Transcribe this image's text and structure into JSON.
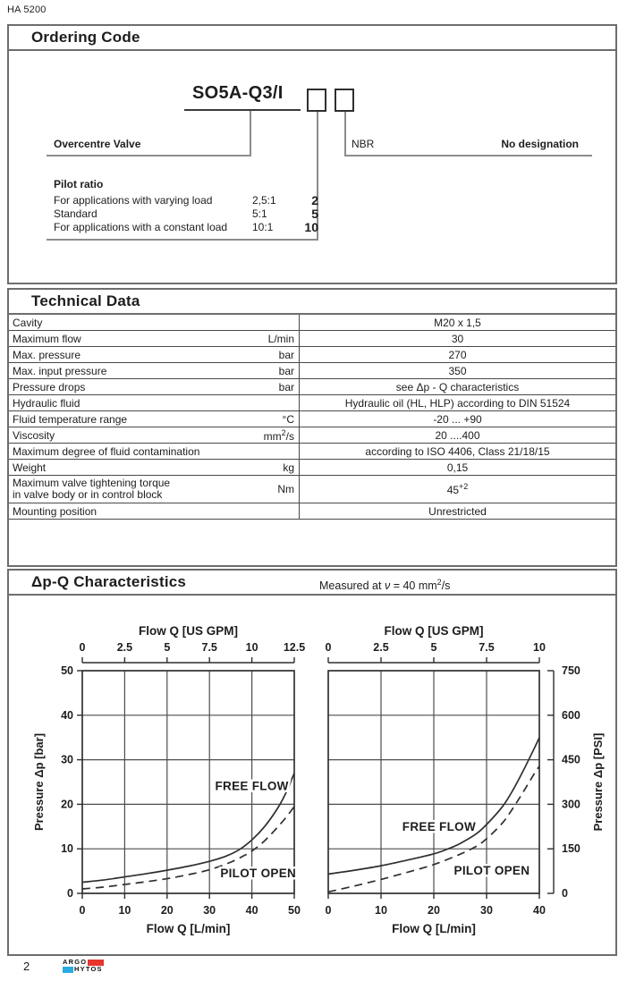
{
  "page": {
    "doc_code": "HA 5200",
    "page_number": "2",
    "logo": {
      "word1": "ARGO",
      "word2": "HYTOS",
      "red": "#e8352e",
      "cyan": "#29abe2"
    }
  },
  "ordering": {
    "title": "Ordering Code",
    "model_code": "SO5A-Q3/I",
    "valve_label": "Overcentre Valve",
    "seal_label": "NBR",
    "seal_value": "No designation",
    "pilot": {
      "heading": "Pilot ratio",
      "rows": [
        {
          "desc": "For applications with varying load",
          "ratio": "2,5:1",
          "code": "2"
        },
        {
          "desc": "Standard",
          "ratio": "5:1",
          "code": "5"
        },
        {
          "desc": "For applications with a constant load",
          "ratio": "10:1",
          "code": "10"
        }
      ]
    }
  },
  "technical": {
    "title": "Technical Data",
    "rows": [
      {
        "label": "Cavity",
        "unit": "",
        "value": "M20 x 1,5"
      },
      {
        "label": "Maximum flow",
        "unit": "L/min",
        "value": "30"
      },
      {
        "label": "Max. pressure",
        "unit": "bar",
        "value": "270"
      },
      {
        "label": "Max. input pressure",
        "unit": "bar",
        "value": "350"
      },
      {
        "label": "Pressure drops",
        "unit": "bar",
        "value": "see Δp - Q characteristics"
      },
      {
        "label": "Hydraulic fluid",
        "unit": "",
        "value": "Hydraulic oil (HL, HLP) according to DIN 51524"
      },
      {
        "label": "Fluid temperature range",
        "unit": "°C",
        "value": "-20 ... +90"
      },
      {
        "label": "Viscosity",
        "unit": "mm",
        "unit_sup": "2",
        "unit_post": "/s",
        "value": "20 ....400"
      },
      {
        "label": "Maximum degree of fluid contamination",
        "unit": "",
        "value": "according to ISO 4406, Class 21/18/15"
      },
      {
        "label": "Weight",
        "unit": "kg",
        "value": "0,15"
      },
      {
        "label": "Maximum valve tightening torque",
        "label2": "in valve body or in control block",
        "unit": "Nm",
        "value": "45",
        "value_sup": "+2"
      },
      {
        "label": "Mounting position",
        "unit": "",
        "value": "Unrestricted"
      }
    ]
  },
  "charts_section": {
    "title": "Δp-Q Characteristics",
    "subtitle_prefix": "Measured at",
    "subtitle_nu": "ν",
    "subtitle_mid": " = 40 mm",
    "subtitle_sup": "2",
    "subtitle_end": "/s"
  },
  "chart_data": [
    {
      "type": "line",
      "top_axis_label": "Flow Q [US GPM]",
      "top_ticks": [
        "0",
        "2.5",
        "5",
        "7.5",
        "10",
        "12.5"
      ],
      "xlabel": "Flow Q [L/min]",
      "x_ticks": [
        0,
        10,
        20,
        30,
        40,
        50
      ],
      "ylabel": "Pressure Δp [bar]",
      "y_axis_side": "left",
      "y_ticks": [
        0,
        10,
        20,
        30,
        40,
        50
      ],
      "xlim": [
        0,
        50
      ],
      "ylim": [
        0,
        50
      ],
      "grid": true,
      "series": [
        {
          "name": "FREE FLOW",
          "line": "solid",
          "label_pos": [
            40,
            24
          ],
          "points": [
            [
              0,
              2.5
            ],
            [
              5,
              3
            ],
            [
              10,
              3.7
            ],
            [
              15,
              4.4
            ],
            [
              20,
              5.2
            ],
            [
              25,
              6.1
            ],
            [
              30,
              7.2
            ],
            [
              34,
              8.4
            ],
            [
              37,
              9.8
            ],
            [
              40,
              12
            ],
            [
              43,
              15
            ],
            [
              46,
              19
            ],
            [
              48,
              22.5
            ],
            [
              50,
              27
            ]
          ]
        },
        {
          "name": "PILOT OPEN",
          "line": "dashed",
          "label_pos": [
            41.5,
            4.4
          ],
          "points": [
            [
              0,
              1
            ],
            [
              5,
              1.4
            ],
            [
              10,
              2
            ],
            [
              15,
              2.6
            ],
            [
              20,
              3.3
            ],
            [
              25,
              4.2
            ],
            [
              30,
              5.3
            ],
            [
              35,
              7
            ],
            [
              38,
              8.4
            ],
            [
              40,
              9.5
            ],
            [
              43,
              11.8
            ],
            [
              46,
              14.8
            ],
            [
              48,
              17
            ],
            [
              50,
              19.5
            ]
          ]
        }
      ]
    },
    {
      "type": "line",
      "top_axis_label": "Flow Q [US GPM]",
      "top_ticks": [
        "0",
        "2.5",
        "5",
        "7.5",
        "10"
      ],
      "xlabel": "Flow Q [L/min]",
      "x_ticks": [
        0,
        10,
        20,
        30,
        40
      ],
      "ylabel": "Pressure Δp [PSI]",
      "y_axis_side": "right",
      "y_ticks": [
        0,
        150,
        300,
        450,
        600,
        750
      ],
      "xlim": [
        0,
        40
      ],
      "ylim": [
        0,
        750
      ],
      "grid": true,
      "series": [
        {
          "name": "FREE FLOW",
          "line": "solid",
          "label_pos": [
            21,
            223
          ],
          "points": [
            [
              0,
              65
            ],
            [
              5,
              78
            ],
            [
              10,
              93
            ],
            [
              15,
              112
            ],
            [
              20,
              133
            ],
            [
              23,
              152
            ],
            [
              25,
              168
            ],
            [
              28,
              200
            ],
            [
              30,
              232
            ],
            [
              33,
              292
            ],
            [
              35,
              348
            ],
            [
              37,
              415
            ],
            [
              39,
              487
            ],
            [
              40,
              525
            ]
          ]
        },
        {
          "name": "PILOT OPEN",
          "line": "dashed",
          "label_pos": [
            31,
            76
          ],
          "points": [
            [
              0,
              5
            ],
            [
              5,
              25
            ],
            [
              10,
              47
            ],
            [
              15,
              71
            ],
            [
              20,
              97
            ],
            [
              25,
              132
            ],
            [
              28,
              158
            ],
            [
              30,
              184
            ],
            [
              33,
              237
            ],
            [
              35,
              287
            ],
            [
              37,
              343
            ],
            [
              39,
              402
            ],
            [
              40,
              428
            ]
          ]
        }
      ]
    }
  ]
}
